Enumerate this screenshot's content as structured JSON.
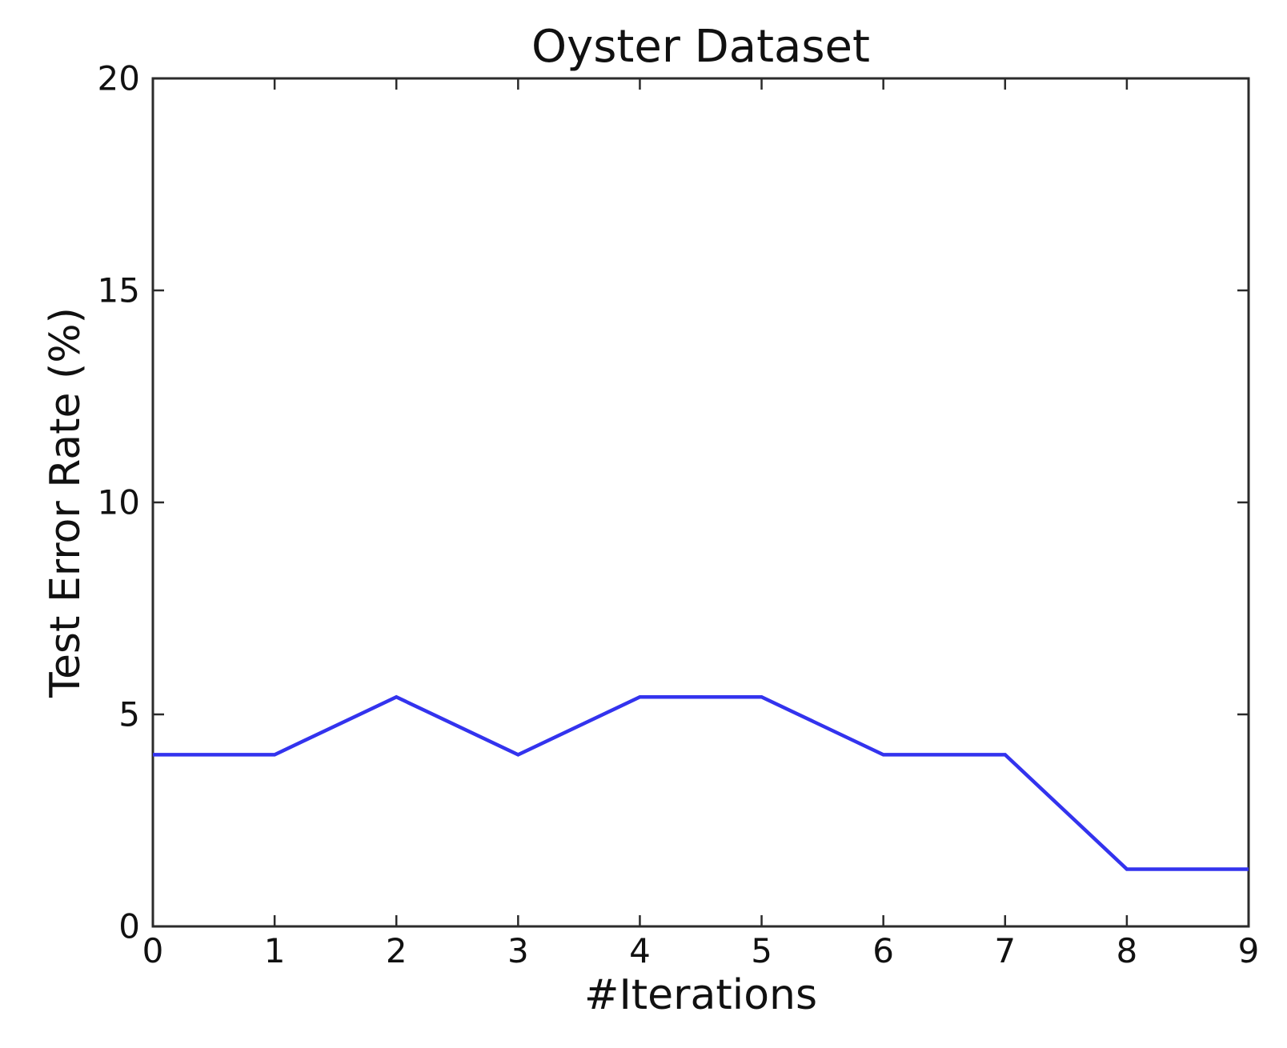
{
  "chart_data": {
    "type": "line",
    "title": "Oyster Dataset",
    "xlabel": "#Iterations",
    "ylabel": "Test Error Rate (%)",
    "x": [
      0,
      1,
      2,
      3,
      4,
      5,
      6,
      7,
      8,
      9
    ],
    "y": [
      4.05,
      4.05,
      5.41,
      4.05,
      5.41,
      5.41,
      4.05,
      4.05,
      1.35,
      1.35
    ],
    "series_name": "Test Error Rate",
    "xlim": [
      0,
      9
    ],
    "ylim": [
      0,
      20
    ],
    "x_ticks": [
      "0",
      "1",
      "2",
      "3",
      "4",
      "5",
      "6",
      "7",
      "8",
      "9"
    ],
    "x_tick_values": [
      0,
      1,
      2,
      3,
      4,
      5,
      6,
      7,
      8,
      9
    ],
    "y_ticks": [
      "0",
      "5",
      "10",
      "15",
      "20"
    ],
    "y_tick_values": [
      0,
      5,
      10,
      15,
      20
    ],
    "grid": false,
    "legend": "none",
    "line_color": "#3333ee",
    "axis_color": "#2b2b2b",
    "text_color": "#111111",
    "background_color": "#ffffff"
  }
}
